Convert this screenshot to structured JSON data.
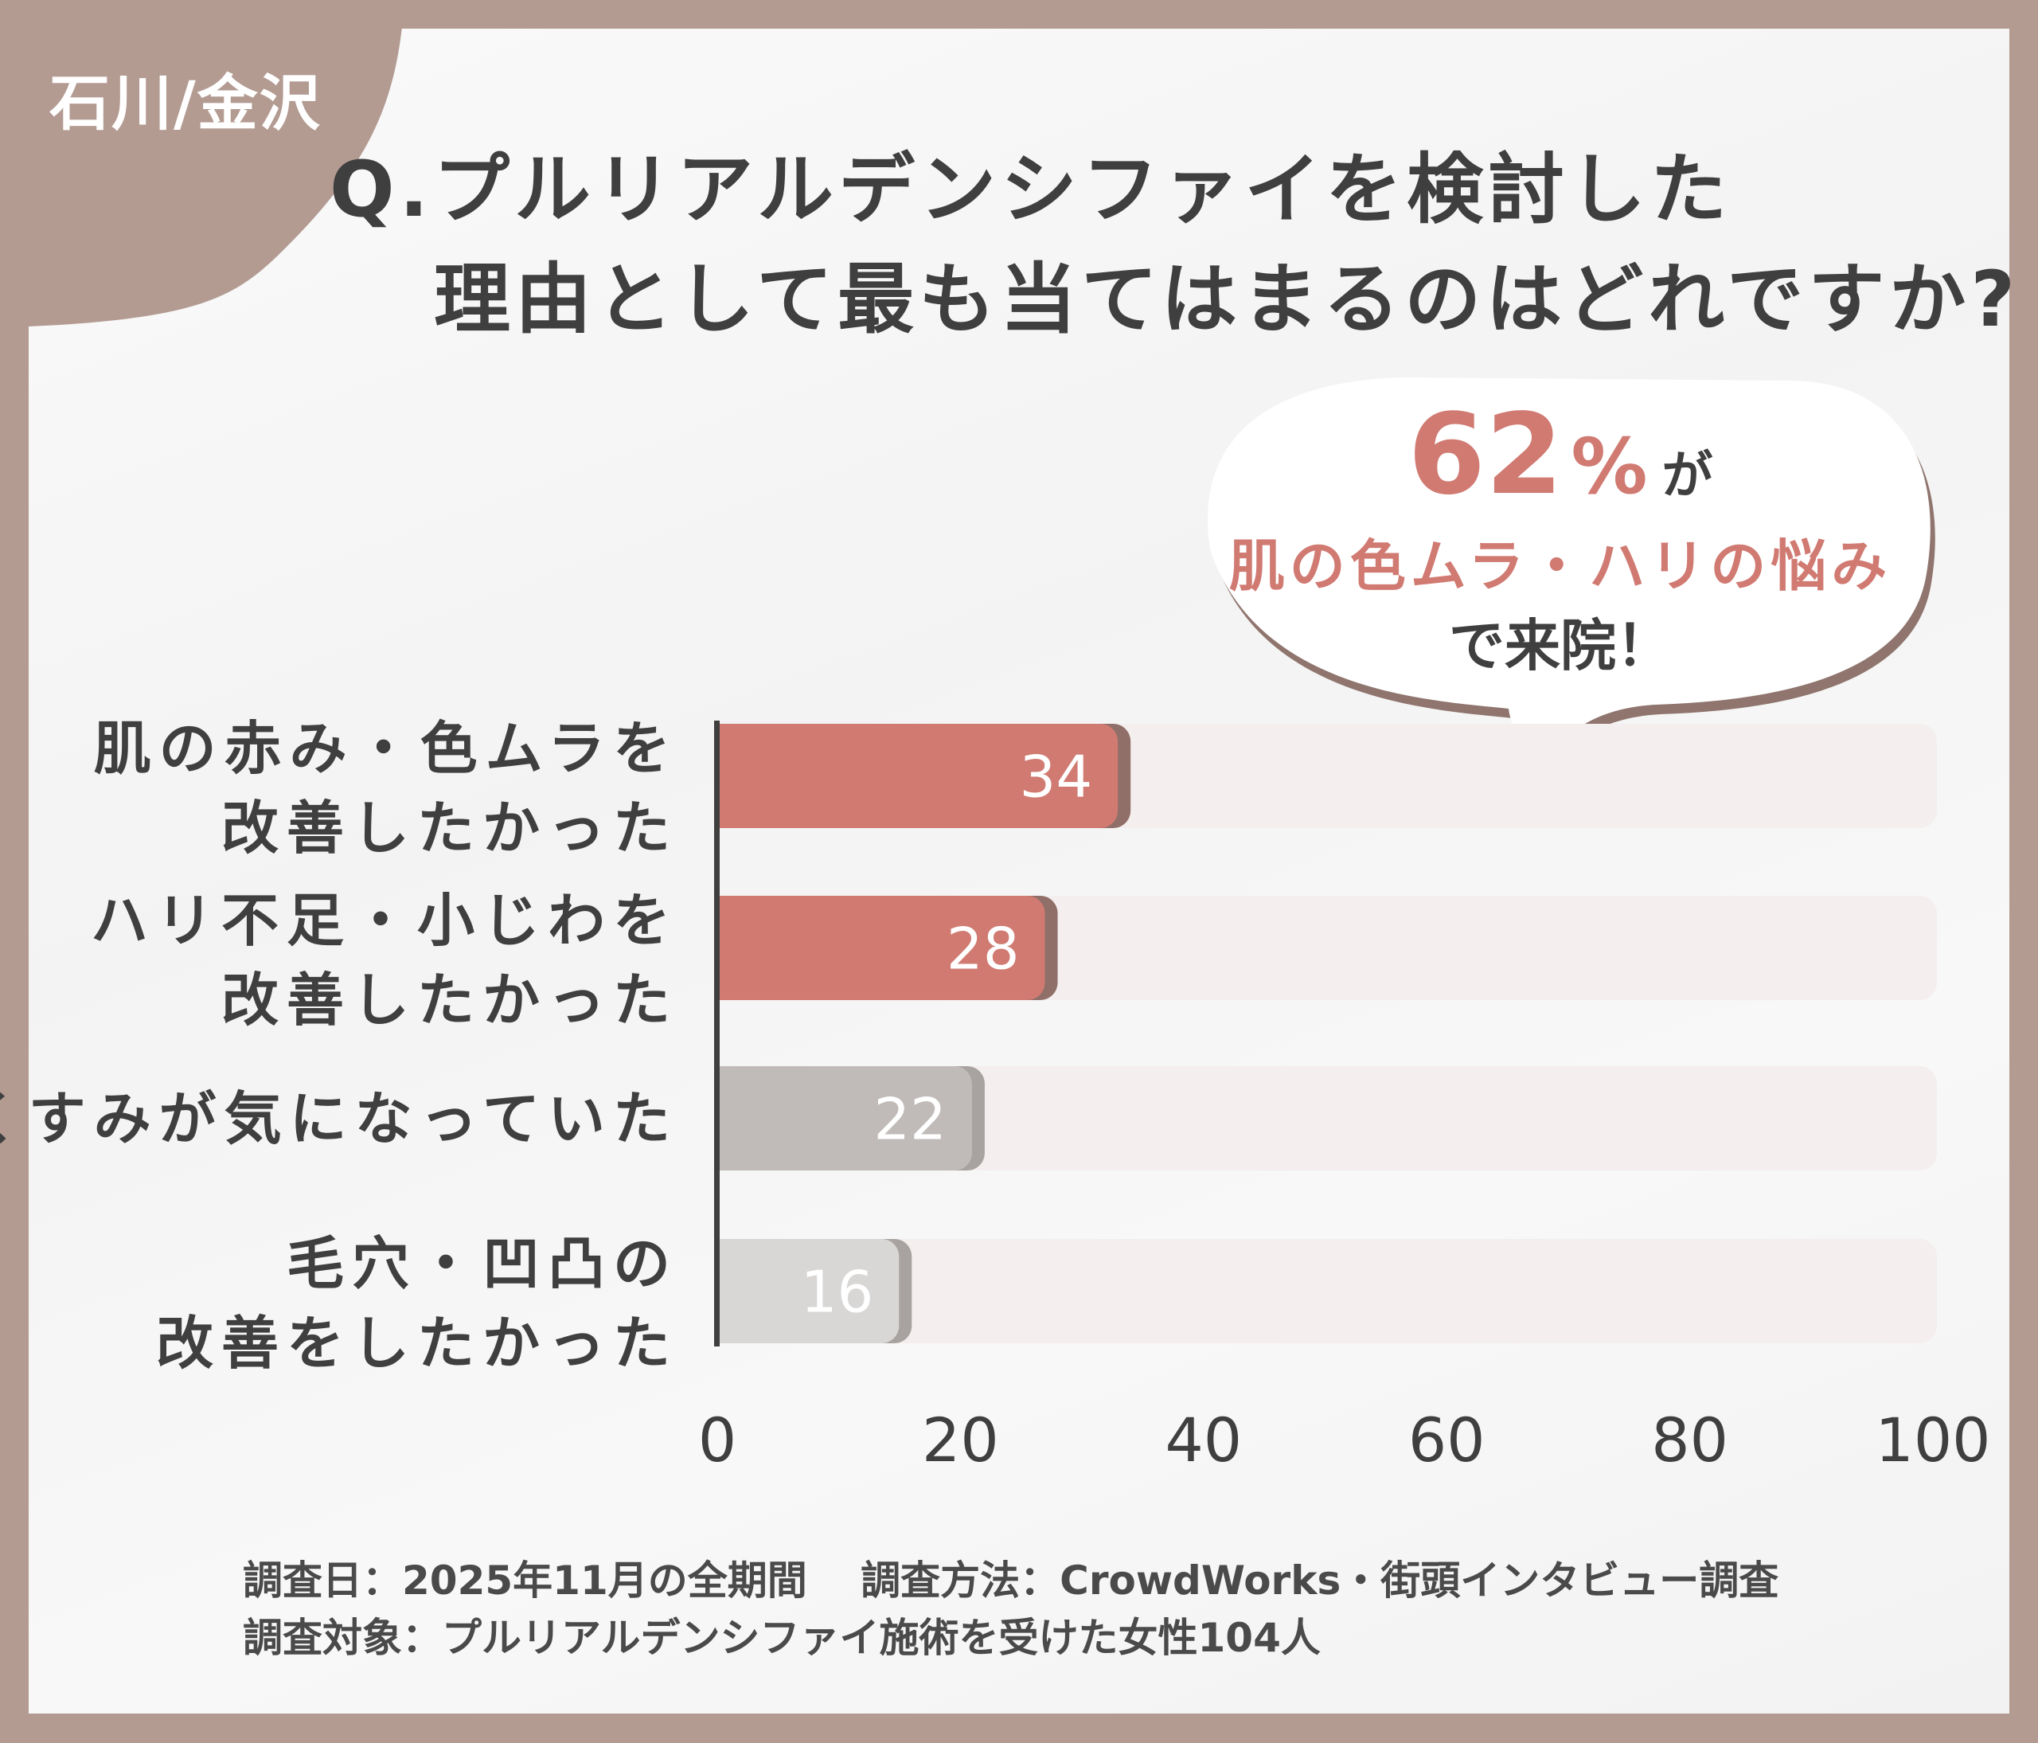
{
  "region_label": "石川/金沢",
  "title": {
    "line1": "Q.プルリアルデンシファイを検討した",
    "line2": "理由として最も当てはまるのはどれですか?"
  },
  "callout": {
    "percent": "62",
    "percent_sign": "%",
    "particle": "が",
    "highlight": "肌の色ムラ・ハリの悩み",
    "closing": "で来院！"
  },
  "colors": {
    "frame": "#b39b92",
    "accent_red": "#d07a72",
    "bar_gray": "#c0bbb8",
    "bar_light_gray": "#d9d7d6",
    "track": "#f4eeee",
    "text": "#3f3f3f"
  },
  "chart_data": {
    "type": "bar",
    "orientation": "horizontal",
    "categories": [
      [
        "肌の赤み・色ムラを",
        "改善したかった"
      ],
      [
        "ハリ不足・小じわを",
        "改善したかった"
      ],
      [
        "くすみが気になっていた"
      ],
      [
        "毛穴・凹凸の",
        "改善をしたかった"
      ]
    ],
    "values": [
      34,
      28,
      22,
      16
    ],
    "bar_colors": [
      "#d07a72",
      "#d07a72",
      "#c0bbb8",
      "#d9d7d6"
    ],
    "xlim": [
      0,
      100
    ],
    "xticks": [
      "0",
      "20",
      "40",
      "60",
      "80",
      "100"
    ],
    "grid": false
  },
  "footer": {
    "line1": "調査日：2025年11月の全期間　 調査方法：CrowdWorks・街頭インタビュー調査",
    "line2": "調査対象：プルリアルデンシファイ施術を受けた女性104人"
  }
}
